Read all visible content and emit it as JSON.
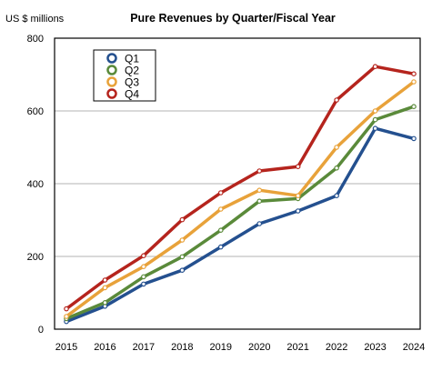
{
  "chart_data": {
    "type": "line",
    "title": "Pure Revenues by Quarter/Fiscal Year",
    "ylabel": "US $ millions",
    "xlabel": "",
    "x": [
      "2015",
      "2016",
      "2017",
      "2018",
      "2019",
      "2020",
      "2021",
      "2022",
      "2023",
      "2024"
    ],
    "ylim": [
      0,
      800
    ],
    "yticks": [
      0,
      200,
      400,
      600,
      800
    ],
    "grid": true,
    "legend_position": "top-left",
    "series": [
      {
        "name": "Q1",
        "color": "#24508f",
        "values": [
          21,
          63,
          124,
          162,
          226,
          290,
          325,
          367,
          552,
          524
        ]
      },
      {
        "name": "Q2",
        "color": "#5a8a3a",
        "values": [
          29,
          73,
          144,
          199,
          272,
          352,
          359,
          443,
          576,
          612
        ]
      },
      {
        "name": "Q3",
        "color": "#e8a23a",
        "values": [
          35,
          114,
          172,
          245,
          330,
          382,
          367,
          500,
          600,
          680
        ]
      },
      {
        "name": "Q4",
        "color": "#b5241d",
        "values": [
          56,
          135,
          202,
          301,
          375,
          435,
          447,
          630,
          722,
          702
        ]
      }
    ]
  }
}
